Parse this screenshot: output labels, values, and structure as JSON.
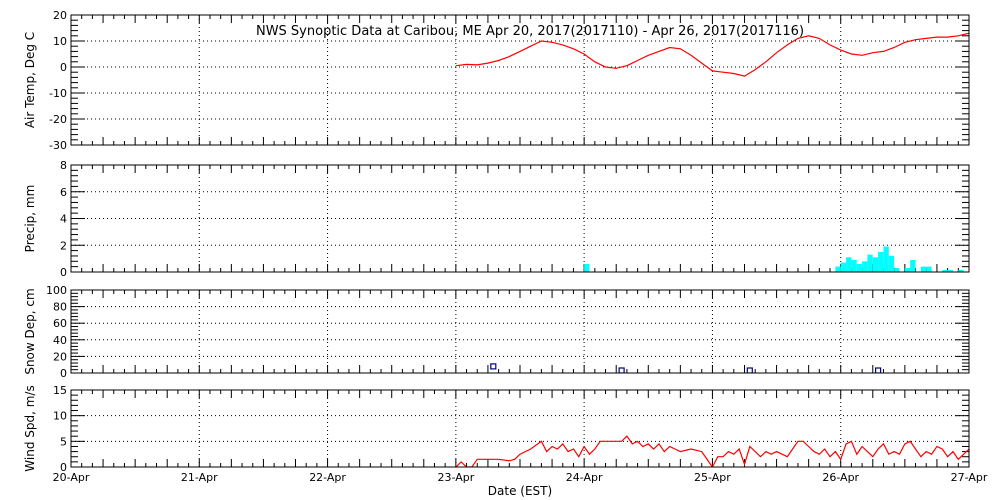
{
  "chart_data": {
    "type": "line",
    "title": "NWS Synoptic Data at Caribou, ME   Apr 20, 2017(2017110) - Apr 26, 2017(2017116)",
    "xlabel": "Date (EST)",
    "x_ticks": [
      "20-Apr",
      "21-Apr",
      "22-Apr",
      "23-Apr",
      "24-Apr",
      "25-Apr",
      "26-Apr",
      "27-Apr"
    ],
    "xlim": [
      "2017-04-20",
      "2017-04-27"
    ],
    "grid": true,
    "colors": {
      "temp": "#ff0000",
      "precip": "#00ffff",
      "snow": "#000080",
      "wind": "#ff0000"
    },
    "panels": [
      {
        "id": "air-temp",
        "ylabel": "Air Temp, Deg C",
        "ylim": [
          -30,
          20
        ],
        "yticks": [
          -30,
          -20,
          -10,
          0,
          10,
          20
        ],
        "series": [
          {
            "type": "line",
            "points": [
              [
                "2017-04-23 00:00",
                0.5
              ],
              [
                "2017-04-23 02:00",
                1.0
              ],
              [
                "2017-04-23 04:00",
                0.8
              ],
              [
                "2017-04-23 06:00",
                1.5
              ],
              [
                "2017-04-23 08:00",
                2.5
              ],
              [
                "2017-04-23 10:00",
                4.0
              ],
              [
                "2017-04-23 12:00",
                6.0
              ],
              [
                "2017-04-23 14:00",
                8.0
              ],
              [
                "2017-04-23 16:00",
                10.0
              ],
              [
                "2017-04-23 18:00",
                9.5
              ],
              [
                "2017-04-23 20:00",
                8.5
              ],
              [
                "2017-04-23 22:00",
                7.0
              ],
              [
                "2017-04-24 00:00",
                5.0
              ],
              [
                "2017-04-24 02:00",
                2.0
              ],
              [
                "2017-04-24 04:00",
                0.0
              ],
              [
                "2017-04-24 06:00",
                -0.5
              ],
              [
                "2017-04-24 08:00",
                0.5
              ],
              [
                "2017-04-24 10:00",
                2.5
              ],
              [
                "2017-04-24 12:00",
                4.5
              ],
              [
                "2017-04-24 14:00",
                6.0
              ],
              [
                "2017-04-24 16:00",
                7.5
              ],
              [
                "2017-04-24 18:00",
                7.0
              ],
              [
                "2017-04-24 20:00",
                4.5
              ],
              [
                "2017-04-24 22:00",
                1.5
              ],
              [
                "2017-04-25 00:00",
                -1.5
              ],
              [
                "2017-04-25 02:00",
                -2.0
              ],
              [
                "2017-04-25 04:00",
                -2.5
              ],
              [
                "2017-04-25 06:00",
                -3.5
              ],
              [
                "2017-04-25 08:00",
                -1.0
              ],
              [
                "2017-04-25 10:00",
                2.0
              ],
              [
                "2017-04-25 12:00",
                5.5
              ],
              [
                "2017-04-25 14:00",
                8.5
              ],
              [
                "2017-04-25 16:00",
                11.0
              ],
              [
                "2017-04-25 18:00",
                12.0
              ],
              [
                "2017-04-25 20:00",
                11.0
              ],
              [
                "2017-04-25 22:00",
                8.5
              ],
              [
                "2017-04-26 00:00",
                6.5
              ],
              [
                "2017-04-26 02:00",
                5.0
              ],
              [
                "2017-04-26 04:00",
                4.5
              ],
              [
                "2017-04-26 06:00",
                5.5
              ],
              [
                "2017-04-26 08:00",
                6.0
              ],
              [
                "2017-04-26 10:00",
                7.5
              ],
              [
                "2017-04-26 12:00",
                9.5
              ],
              [
                "2017-04-26 14:00",
                10.5
              ],
              [
                "2017-04-26 16:00",
                11.0
              ],
              [
                "2017-04-26 18:00",
                11.5
              ],
              [
                "2017-04-26 20:00",
                11.5
              ],
              [
                "2017-04-26 22:00",
                12.0
              ],
              [
                "2017-04-27 00:00",
                13.0
              ]
            ]
          }
        ]
      },
      {
        "id": "precip",
        "ylabel": "Precip, mm",
        "ylim": [
          0,
          8
        ],
        "yticks": [
          0,
          2,
          4,
          6,
          8
        ],
        "series": [
          {
            "type": "bar",
            "bar_hours": 1,
            "points": [
              [
                "2017-04-24 00:00",
                0.6
              ],
              [
                "2017-04-25 23:00",
                0.4
              ],
              [
                "2017-04-26 00:00",
                0.7
              ],
              [
                "2017-04-26 01:00",
                1.1
              ],
              [
                "2017-04-26 02:00",
                0.9
              ],
              [
                "2017-04-26 03:00",
                0.6
              ],
              [
                "2017-04-26 04:00",
                0.8
              ],
              [
                "2017-04-26 05:00",
                1.3
              ],
              [
                "2017-04-26 06:00",
                1.1
              ],
              [
                "2017-04-26 07:00",
                1.5
              ],
              [
                "2017-04-26 08:00",
                1.9
              ],
              [
                "2017-04-26 09:00",
                1.2
              ],
              [
                "2017-04-26 10:00",
                0.3
              ],
              [
                "2017-04-26 12:00",
                0.3
              ],
              [
                "2017-04-26 13:00",
                0.9
              ],
              [
                "2017-04-26 15:00",
                0.4
              ],
              [
                "2017-04-26 16:00",
                0.4
              ],
              [
                "2017-04-26 19:00",
                0.15
              ],
              [
                "2017-04-26 20:00",
                0.15
              ],
              [
                "2017-04-26 22:00",
                0.15
              ]
            ]
          }
        ]
      },
      {
        "id": "snow-depth",
        "ylabel": "Snow Dep, cm",
        "ylim": [
          0,
          100
        ],
        "yticks": [
          0,
          20,
          40,
          60,
          80,
          100
        ],
        "series": [
          {
            "type": "scatter",
            "marker": "square",
            "points": [
              [
                "2017-04-23 07:00",
                5
              ],
              [
                "2017-04-24 07:00",
                0
              ],
              [
                "2017-04-25 07:00",
                0
              ],
              [
                "2017-04-26 07:00",
                0
              ]
            ]
          }
        ]
      },
      {
        "id": "wind-speed",
        "ylabel": "Wind Spd, m/s",
        "ylim": [
          0,
          15
        ],
        "yticks": [
          0,
          5,
          10,
          15
        ],
        "series": [
          {
            "type": "line",
            "points": [
              [
                "2017-04-23 00:00",
                0.0
              ],
              [
                "2017-04-23 01:00",
                1.0
              ],
              [
                "2017-04-23 02:00",
                0.0
              ],
              [
                "2017-04-23 03:00",
                0.0
              ],
              [
                "2017-04-23 04:00",
                1.5
              ],
              [
                "2017-04-23 06:00",
                1.5
              ],
              [
                "2017-04-23 08:00",
                1.5
              ],
              [
                "2017-04-23 10:00",
                1.2
              ],
              [
                "2017-04-23 11:00",
                1.5
              ],
              [
                "2017-04-23 12:00",
                2.5
              ],
              [
                "2017-04-23 14:00",
                3.5
              ],
              [
                "2017-04-23 16:00",
                5.0
              ],
              [
                "2017-04-23 17:00",
                3.0
              ],
              [
                "2017-04-23 18:00",
                4.0
              ],
              [
                "2017-04-23 19:00",
                3.5
              ],
              [
                "2017-04-23 20:00",
                4.5
              ],
              [
                "2017-04-23 21:00",
                3.0
              ],
              [
                "2017-04-23 22:00",
                3.5
              ],
              [
                "2017-04-23 23:00",
                2.0
              ],
              [
                "2017-04-24 00:00",
                4.0
              ],
              [
                "2017-04-24 01:00",
                2.5
              ],
              [
                "2017-04-24 02:00",
                3.5
              ],
              [
                "2017-04-24 03:00",
                5.0
              ],
              [
                "2017-04-24 05:00",
                5.0
              ],
              [
                "2017-04-24 07:00",
                5.0
              ],
              [
                "2017-04-24 08:00",
                6.0
              ],
              [
                "2017-04-24 09:00",
                4.5
              ],
              [
                "2017-04-24 10:00",
                5.0
              ],
              [
                "2017-04-24 11:00",
                4.0
              ],
              [
                "2017-04-24 12:00",
                4.5
              ],
              [
                "2017-04-24 13:00",
                3.5
              ],
              [
                "2017-04-24 14:00",
                4.5
              ],
              [
                "2017-04-24 15:00",
                3.0
              ],
              [
                "2017-04-24 16:00",
                4.0
              ],
              [
                "2017-04-24 17:00",
                3.5
              ],
              [
                "2017-04-24 18:00",
                3.0
              ],
              [
                "2017-04-24 20:00",
                3.5
              ],
              [
                "2017-04-24 22:00",
                3.0
              ],
              [
                "2017-04-25 00:00",
                0.0
              ],
              [
                "2017-04-25 01:00",
                2.0
              ],
              [
                "2017-04-25 02:00",
                2.0
              ],
              [
                "2017-04-25 03:00",
                3.0
              ],
              [
                "2017-04-25 04:00",
                2.5
              ],
              [
                "2017-04-25 05:00",
                3.5
              ],
              [
                "2017-04-25 06:00",
                0.5
              ],
              [
                "2017-04-25 07:00",
                4.0
              ],
              [
                "2017-04-25 08:00",
                3.0
              ],
              [
                "2017-04-25 09:00",
                2.0
              ],
              [
                "2017-04-25 10:00",
                3.0
              ],
              [
                "2017-04-25 11:00",
                2.5
              ],
              [
                "2017-04-25 12:00",
                3.0
              ],
              [
                "2017-04-25 14:00",
                2.0
              ],
              [
                "2017-04-25 15:00",
                3.5
              ],
              [
                "2017-04-25 16:00",
                5.0
              ],
              [
                "2017-04-25 17:00",
                5.0
              ],
              [
                "2017-04-25 18:00",
                4.0
              ],
              [
                "2017-04-25 19:00",
                3.0
              ],
              [
                "2017-04-25 20:00",
                2.5
              ],
              [
                "2017-04-25 21:00",
                3.5
              ],
              [
                "2017-04-25 22:00",
                2.0
              ],
              [
                "2017-04-25 23:00",
                3.0
              ],
              [
                "2017-04-26 00:00",
                1.5
              ],
              [
                "2017-04-26 01:00",
                4.5
              ],
              [
                "2017-04-26 02:00",
                5.0
              ],
              [
                "2017-04-26 03:00",
                2.5
              ],
              [
                "2017-04-26 04:00",
                4.0
              ],
              [
                "2017-04-26 05:00",
                3.0
              ],
              [
                "2017-04-26 06:00",
                2.0
              ],
              [
                "2017-04-26 07:00",
                3.5
              ],
              [
                "2017-04-26 08:00",
                4.5
              ],
              [
                "2017-04-26 09:00",
                2.5
              ],
              [
                "2017-04-26 10:00",
                3.0
              ],
              [
                "2017-04-26 11:00",
                2.5
              ],
              [
                "2017-04-26 12:00",
                4.5
              ],
              [
                "2017-04-26 13:00",
                5.0
              ],
              [
                "2017-04-26 14:00",
                3.5
              ],
              [
                "2017-04-26 15:00",
                2.0
              ],
              [
                "2017-04-26 16:00",
                3.0
              ],
              [
                "2017-04-26 17:00",
                2.5
              ],
              [
                "2017-04-26 18:00",
                4.0
              ],
              [
                "2017-04-26 19:00",
                3.5
              ],
              [
                "2017-04-26 20:00",
                2.0
              ],
              [
                "2017-04-26 21:00",
                3.0
              ],
              [
                "2017-04-26 22:00",
                1.5
              ],
              [
                "2017-04-26 23:00",
                2.5
              ],
              [
                "2017-04-27 00:00",
                3.5
              ]
            ]
          }
        ]
      }
    ]
  }
}
